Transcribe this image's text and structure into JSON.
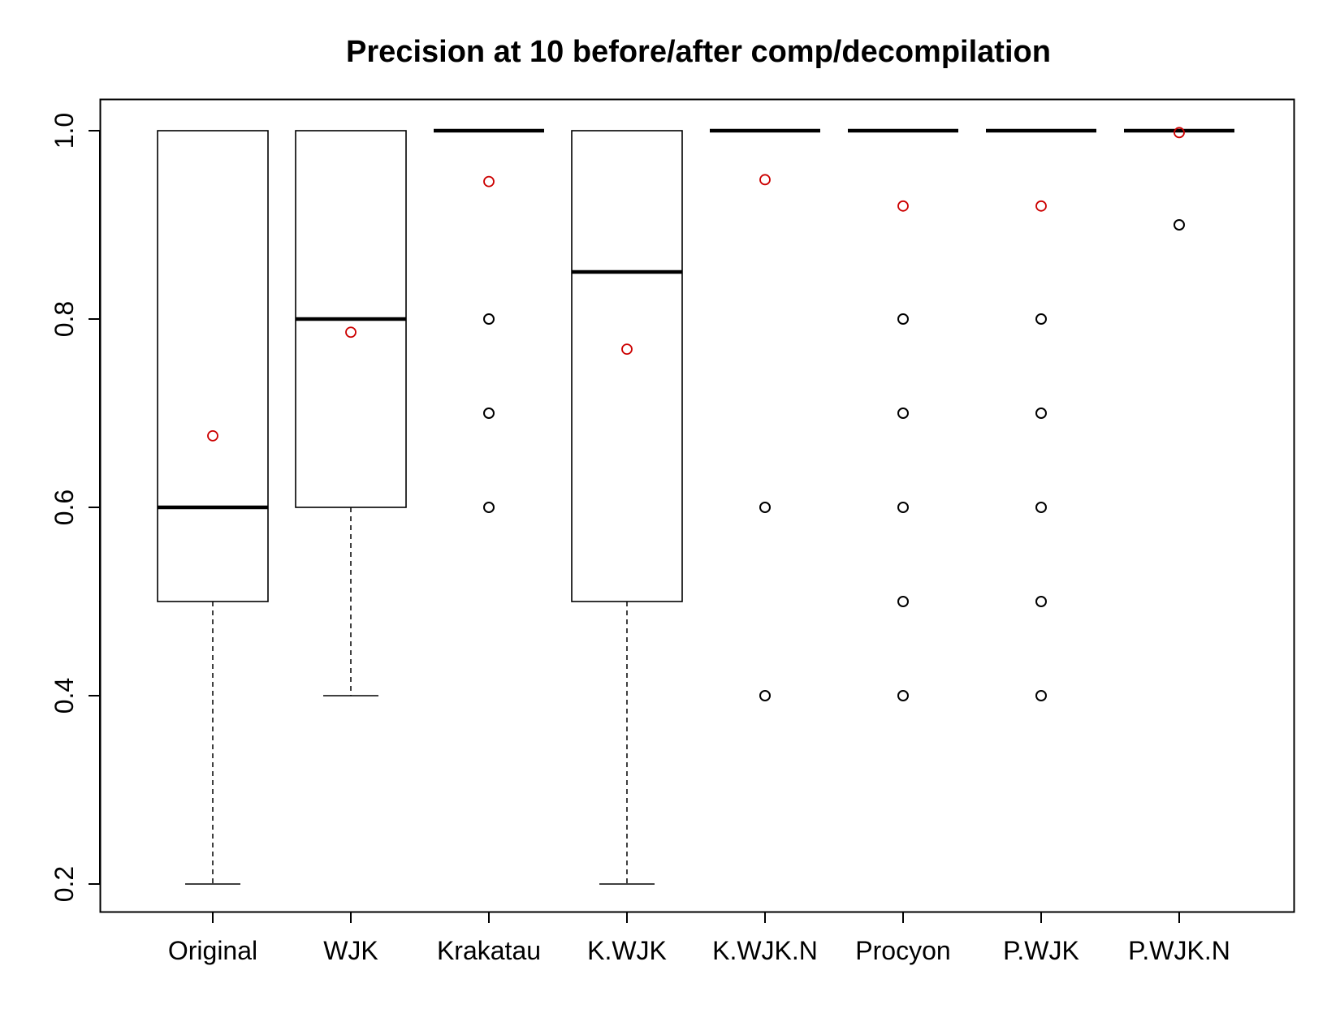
{
  "chart_data": {
    "type": "boxplot",
    "title": "Precision at 10 before/after comp/decompilation",
    "xlabel": "",
    "ylabel": "",
    "ylim": [
      0.17,
      1.03
    ],
    "yticks": [
      0.2,
      0.4,
      0.6,
      0.8,
      1.0
    ],
    "ytick_labels": [
      "0.2",
      "0.4",
      "0.6",
      "0.8",
      "1.0"
    ],
    "grid": false,
    "legend": "none",
    "colors": {
      "box": "#000000",
      "outlier": "#000000",
      "mean": "#cc0000"
    },
    "categories": [
      "Original",
      "WJK",
      "Krakatau",
      "K.WJK",
      "K.WJK.N",
      "Procyon",
      "P.WJK",
      "P.WJK.N"
    ],
    "boxes": [
      {
        "name": "Original",
        "whisker_low": 0.2,
        "q1": 0.5,
        "median": 0.6,
        "q3": 1.0,
        "whisker_high": 1.0,
        "outliers": [],
        "mean": 0.676
      },
      {
        "name": "WJK",
        "whisker_low": 0.4,
        "q1": 0.6,
        "median": 0.8,
        "q3": 1.0,
        "whisker_high": 1.0,
        "outliers": [],
        "mean": 0.786
      },
      {
        "name": "Krakatau",
        "whisker_low": 1.0,
        "q1": 1.0,
        "median": 1.0,
        "q3": 1.0,
        "whisker_high": 1.0,
        "outliers": [
          0.8,
          0.7,
          0.6
        ],
        "mean": 0.946
      },
      {
        "name": "K.WJK",
        "whisker_low": 0.2,
        "q1": 0.5,
        "median": 0.85,
        "q3": 1.0,
        "whisker_high": 1.0,
        "outliers": [],
        "mean": 0.768
      },
      {
        "name": "K.WJK.N",
        "whisker_low": 1.0,
        "q1": 1.0,
        "median": 1.0,
        "q3": 1.0,
        "whisker_high": 1.0,
        "outliers": [
          0.6,
          0.4
        ],
        "mean": 0.948
      },
      {
        "name": "Procyon",
        "whisker_low": 1.0,
        "q1": 1.0,
        "median": 1.0,
        "q3": 1.0,
        "whisker_high": 1.0,
        "outliers": [
          0.8,
          0.7,
          0.6,
          0.5,
          0.4
        ],
        "mean": 0.92
      },
      {
        "name": "P.WJK",
        "whisker_low": 1.0,
        "q1": 1.0,
        "median": 1.0,
        "q3": 1.0,
        "whisker_high": 1.0,
        "outliers": [
          0.8,
          0.7,
          0.6,
          0.5,
          0.4
        ],
        "mean": 0.92
      },
      {
        "name": "P.WJK.N",
        "whisker_low": 1.0,
        "q1": 1.0,
        "median": 1.0,
        "q3": 1.0,
        "whisker_high": 1.0,
        "outliers": [
          0.9
        ],
        "mean": 0.998
      }
    ]
  }
}
